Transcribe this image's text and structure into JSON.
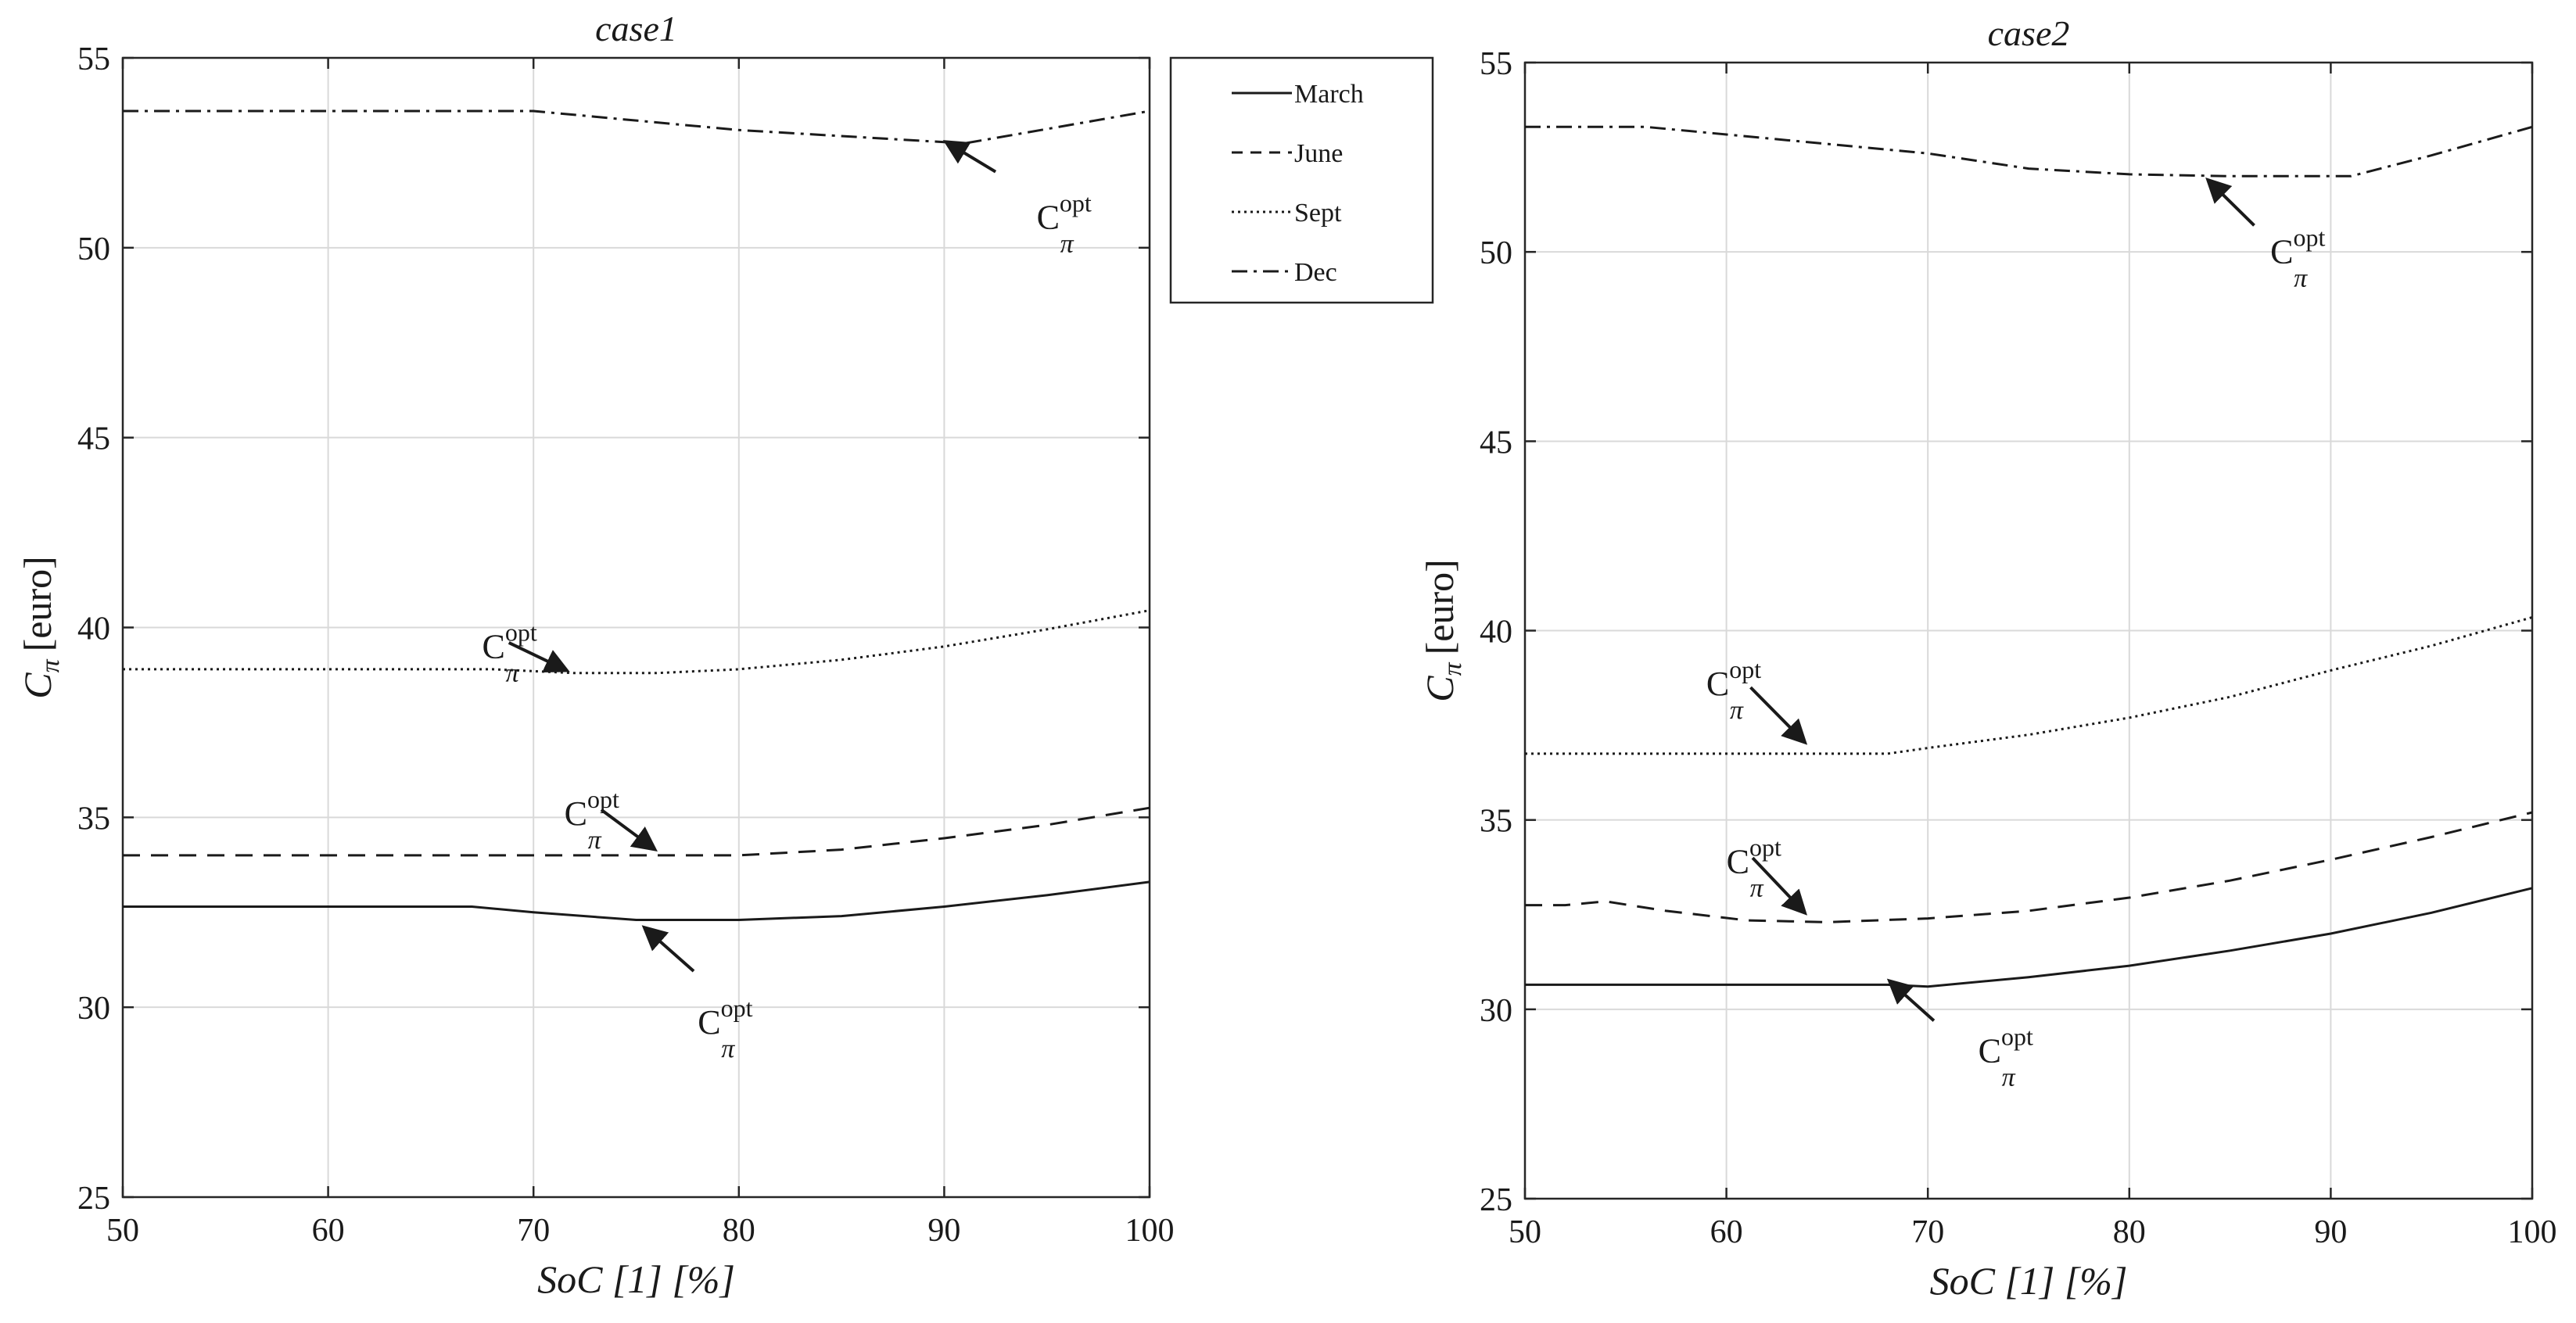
{
  "chart_data": [
    {
      "type": "line",
      "title": "case1",
      "xlabel": "SoC [1] [%]",
      "ylabel": "[euro]",
      "ylabel_symbol": "C",
      "ylabel_sub": "π",
      "xlim": [
        50,
        100
      ],
      "ylim": [
        25,
        55
      ],
      "xticks": [
        "50",
        "60",
        "70",
        "80",
        "90",
        "100"
      ],
      "yticks": [
        "25",
        "30",
        "35",
        "40",
        "45",
        "50",
        "55"
      ],
      "grid": true,
      "series": [
        {
          "name": "March",
          "style": "solid",
          "points": [
            [
              50,
              32.65
            ],
            [
              60,
              32.65
            ],
            [
              67,
              32.65
            ],
            [
              70,
              32.5
            ],
            [
              75,
              32.3
            ],
            [
              80,
              32.3
            ],
            [
              85,
              32.4
            ],
            [
              90,
              32.65
            ],
            [
              95,
              32.95
            ],
            [
              100,
              33.3
            ]
          ]
        },
        {
          "name": "June",
          "style": "dashed",
          "points": [
            [
              50,
              34.0
            ],
            [
              60,
              34.0
            ],
            [
              70,
              34.0
            ],
            [
              80,
              34.0
            ],
            [
              85,
              34.15
            ],
            [
              90,
              34.45
            ],
            [
              95,
              34.8
            ],
            [
              100,
              35.25
            ]
          ]
        },
        {
          "name": "Sept",
          "style": "dotted",
          "points": [
            [
              50,
              38.9
            ],
            [
              60,
              38.9
            ],
            [
              68,
              38.9
            ],
            [
              72,
              38.8
            ],
            [
              76,
              38.8
            ],
            [
              80,
              38.9
            ],
            [
              85,
              39.15
            ],
            [
              90,
              39.5
            ],
            [
              95,
              39.95
            ],
            [
              100,
              40.45
            ]
          ]
        },
        {
          "name": "Dec",
          "style": "dashdot",
          "points": [
            [
              50,
              53.6
            ],
            [
              60,
              53.6
            ],
            [
              70,
              53.6
            ],
            [
              80,
              53.1
            ],
            [
              91,
              52.75
            ],
            [
              100,
              53.6
            ]
          ]
        }
      ],
      "annotations": [
        {
          "text": "C",
          "sup": "opt",
          "sub": "π",
          "label_at": [
            94.5,
            50.5
          ],
          "arrow_from": [
            92.5,
            52.0
          ],
          "arrow_to": [
            90.2,
            52.75
          ]
        },
        {
          "text": "C",
          "sup": "opt",
          "sub": "π",
          "label_at": [
            67.5,
            39.2
          ],
          "arrow_from": [
            68.8,
            39.6
          ],
          "arrow_to": [
            71.5,
            38.9
          ]
        },
        {
          "text": "C",
          "sup": "opt",
          "sub": "π",
          "label_at": [
            71.5,
            34.8
          ],
          "arrow_from": [
            73.3,
            35.2
          ],
          "arrow_to": [
            75.8,
            34.2
          ]
        },
        {
          "text": "C",
          "sup": "opt",
          "sub": "π",
          "label_at": [
            78.0,
            29.3
          ],
          "arrow_from": [
            77.8,
            30.95
          ],
          "arrow_to": [
            75.5,
            32.05
          ]
        }
      ]
    },
    {
      "type": "line",
      "title": "case2",
      "xlabel": "SoC [1] [%]",
      "ylabel": "[euro]",
      "ylabel_symbol": "C",
      "ylabel_sub": "π",
      "xlim": [
        50,
        100
      ],
      "ylim": [
        25,
        55
      ],
      "xticks": [
        "50",
        "60",
        "70",
        "80",
        "90",
        "100"
      ],
      "yticks": [
        "25",
        "30",
        "35",
        "40",
        "45",
        "50",
        "55"
      ],
      "grid": true,
      "series": [
        {
          "name": "March",
          "style": "solid",
          "points": [
            [
              50,
              30.65
            ],
            [
              60,
              30.65
            ],
            [
              68,
              30.65
            ],
            [
              70,
              30.6
            ],
            [
              75,
              30.85
            ],
            [
              80,
              31.15
            ],
            [
              85,
              31.55
            ],
            [
              90,
              32.0
            ],
            [
              95,
              32.55
            ],
            [
              100,
              33.2
            ]
          ]
        },
        {
          "name": "June",
          "style": "dashed",
          "points": [
            [
              50,
              32.75
            ],
            [
              52,
              32.75
            ],
            [
              54,
              32.85
            ],
            [
              57,
              32.6
            ],
            [
              61,
              32.35
            ],
            [
              65,
              32.3
            ],
            [
              70,
              32.4
            ],
            [
              75,
              32.6
            ],
            [
              80,
              32.95
            ],
            [
              85,
              33.4
            ],
            [
              90,
              33.95
            ],
            [
              95,
              34.55
            ],
            [
              100,
              35.2
            ]
          ]
        },
        {
          "name": "Sept",
          "style": "dotted",
          "points": [
            [
              50,
              36.75
            ],
            [
              60,
              36.75
            ],
            [
              68,
              36.75
            ],
            [
              70,
              36.9
            ],
            [
              75,
              37.25
            ],
            [
              80,
              37.7
            ],
            [
              85,
              38.25
            ],
            [
              90,
              38.95
            ],
            [
              95,
              39.6
            ],
            [
              100,
              40.35
            ]
          ]
        },
        {
          "name": "Dec",
          "style": "dashdot",
          "points": [
            [
              50,
              53.3
            ],
            [
              56,
              53.3
            ],
            [
              60,
              53.1
            ],
            [
              65,
              52.85
            ],
            [
              70,
              52.6
            ],
            [
              75,
              52.2
            ],
            [
              80,
              52.05
            ],
            [
              85,
              52.0
            ],
            [
              91,
              52.0
            ],
            [
              95,
              52.55
            ],
            [
              100,
              53.3
            ]
          ]
        }
      ],
      "annotations": [
        {
          "text": "C",
          "sup": "opt",
          "sub": "π",
          "label_at": [
            87.0,
            49.7
          ],
          "arrow_from": [
            86.2,
            50.7
          ],
          "arrow_to": [
            84.0,
            51.85
          ]
        },
        {
          "text": "C",
          "sup": "opt",
          "sub": "π",
          "label_at": [
            59.0,
            38.3
          ],
          "arrow_from": [
            61.2,
            38.5
          ],
          "arrow_to": [
            63.8,
            37.1
          ]
        },
        {
          "text": "C",
          "sup": "opt",
          "sub": "π",
          "label_at": [
            60.0,
            33.6
          ],
          "arrow_from": [
            61.3,
            34.0
          ],
          "arrow_to": [
            63.8,
            32.6
          ]
        },
        {
          "text": "C",
          "sup": "opt",
          "sub": "π",
          "label_at": [
            72.5,
            28.6
          ],
          "arrow_from": [
            70.3,
            29.7
          ],
          "arrow_to": [
            68.2,
            30.7
          ]
        }
      ]
    }
  ],
  "legend": {
    "placement": "between panels, top",
    "entries": [
      {
        "label": "March",
        "style": "solid"
      },
      {
        "label": "June",
        "style": "dashed"
      },
      {
        "label": "Sept",
        "style": "dotted"
      },
      {
        "label": "Dec",
        "style": "dashdot"
      }
    ]
  },
  "colors": {
    "line": "#1a1a1a",
    "grid": "#d9d9d9",
    "axis": "#262626",
    "background": "#ffffff"
  }
}
